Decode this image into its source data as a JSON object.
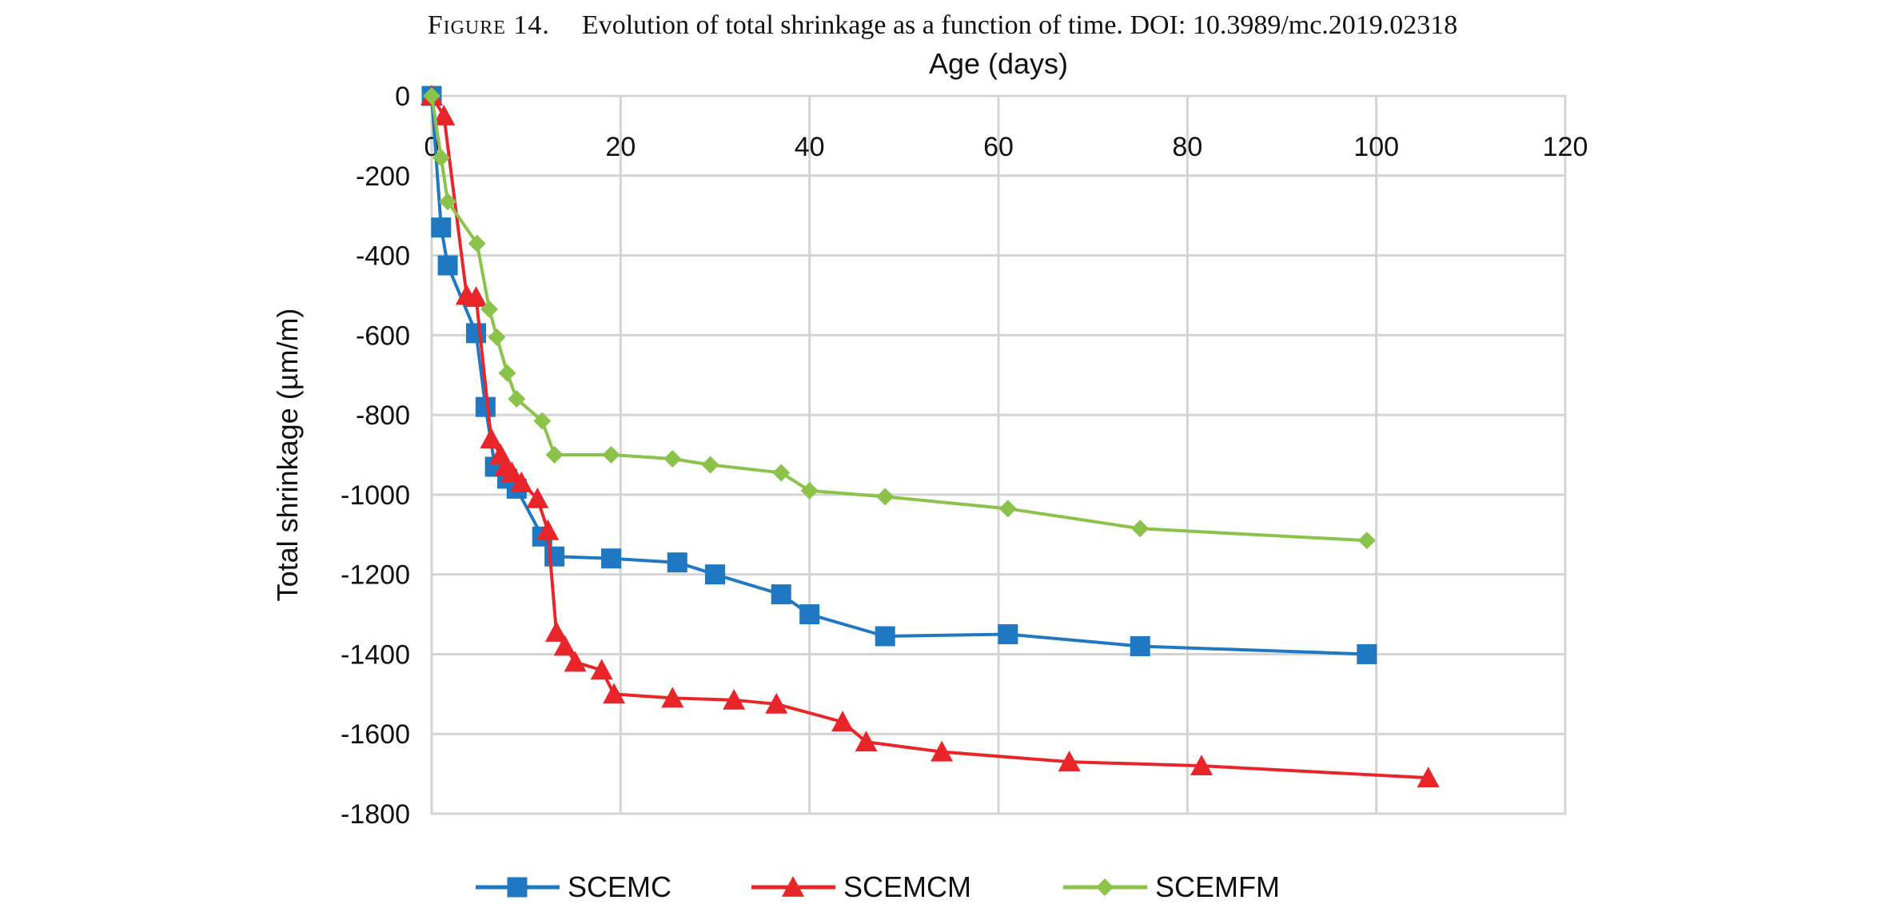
{
  "caption": {
    "label": "Figure 14.",
    "text": "Evolution of total shrinkage as a function of time.",
    "doi_label": "DOI",
    "doi": "10.3989/mc.2019.02318"
  },
  "chart_data": {
    "type": "line",
    "title": "",
    "xlabel": "Age (days)",
    "ylabel": "Total shrinkage (µm/m)",
    "xlim": [
      0,
      120
    ],
    "ylim": [
      -1800,
      0
    ],
    "x_ticks": [
      0,
      20,
      40,
      60,
      80,
      100,
      120
    ],
    "y_ticks": [
      0,
      -200,
      -400,
      -600,
      -800,
      -1000,
      -1200,
      -1400,
      -1600,
      -1800
    ],
    "x_axis_position": "top",
    "grid": true,
    "legend_position": "bottom",
    "series": [
      {
        "name": "SCEMC",
        "color": "#1f78c1",
        "marker": "square",
        "x": [
          0,
          1,
          1.7,
          4.7,
          5.7,
          6.7,
          8,
          9,
          11.7,
          13,
          19,
          26,
          30,
          37,
          40,
          48,
          61,
          75,
          99
        ],
        "y": [
          0,
          -330,
          -425,
          -595,
          -780,
          -930,
          -960,
          -985,
          -1105,
          -1155,
          -1160,
          -1170,
          -1200,
          -1250,
          -1300,
          -1355,
          -1350,
          -1380,
          -1400
        ]
      },
      {
        "name": "SCEMCM",
        "color": "#e8262a",
        "marker": "triangle",
        "x": [
          0,
          1.3,
          3.7,
          4.7,
          6.3,
          7.3,
          7.8,
          8.5,
          9.5,
          11.2,
          12.3,
          13.2,
          14.1,
          15.2,
          18,
          19.3,
          25.5,
          32,
          36.5,
          43.5,
          46,
          54,
          67.5,
          81.5,
          105.5
        ],
        "y": [
          0,
          -50,
          -500,
          -505,
          -860,
          -900,
          -930,
          -945,
          -970,
          -1010,
          -1090,
          -1345,
          -1380,
          -1420,
          -1440,
          -1500,
          -1510,
          -1515,
          -1525,
          -1570,
          -1620,
          -1645,
          -1670,
          -1680,
          -1710
        ]
      },
      {
        "name": "SCEMFM",
        "color": "#8bc34a",
        "marker": "diamond",
        "x": [
          0,
          1,
          1.7,
          4.8,
          6.1,
          6.9,
          8,
          9,
          11.7,
          13,
          19,
          25.5,
          29.5,
          37,
          40,
          48,
          61,
          75,
          99
        ],
        "y": [
          0,
          -155,
          -265,
          -370,
          -535,
          -605,
          -695,
          -760,
          -815,
          -900,
          -900,
          -910,
          -925,
          -945,
          -990,
          -1005,
          -1035,
          -1085,
          -1115
        ]
      }
    ]
  }
}
